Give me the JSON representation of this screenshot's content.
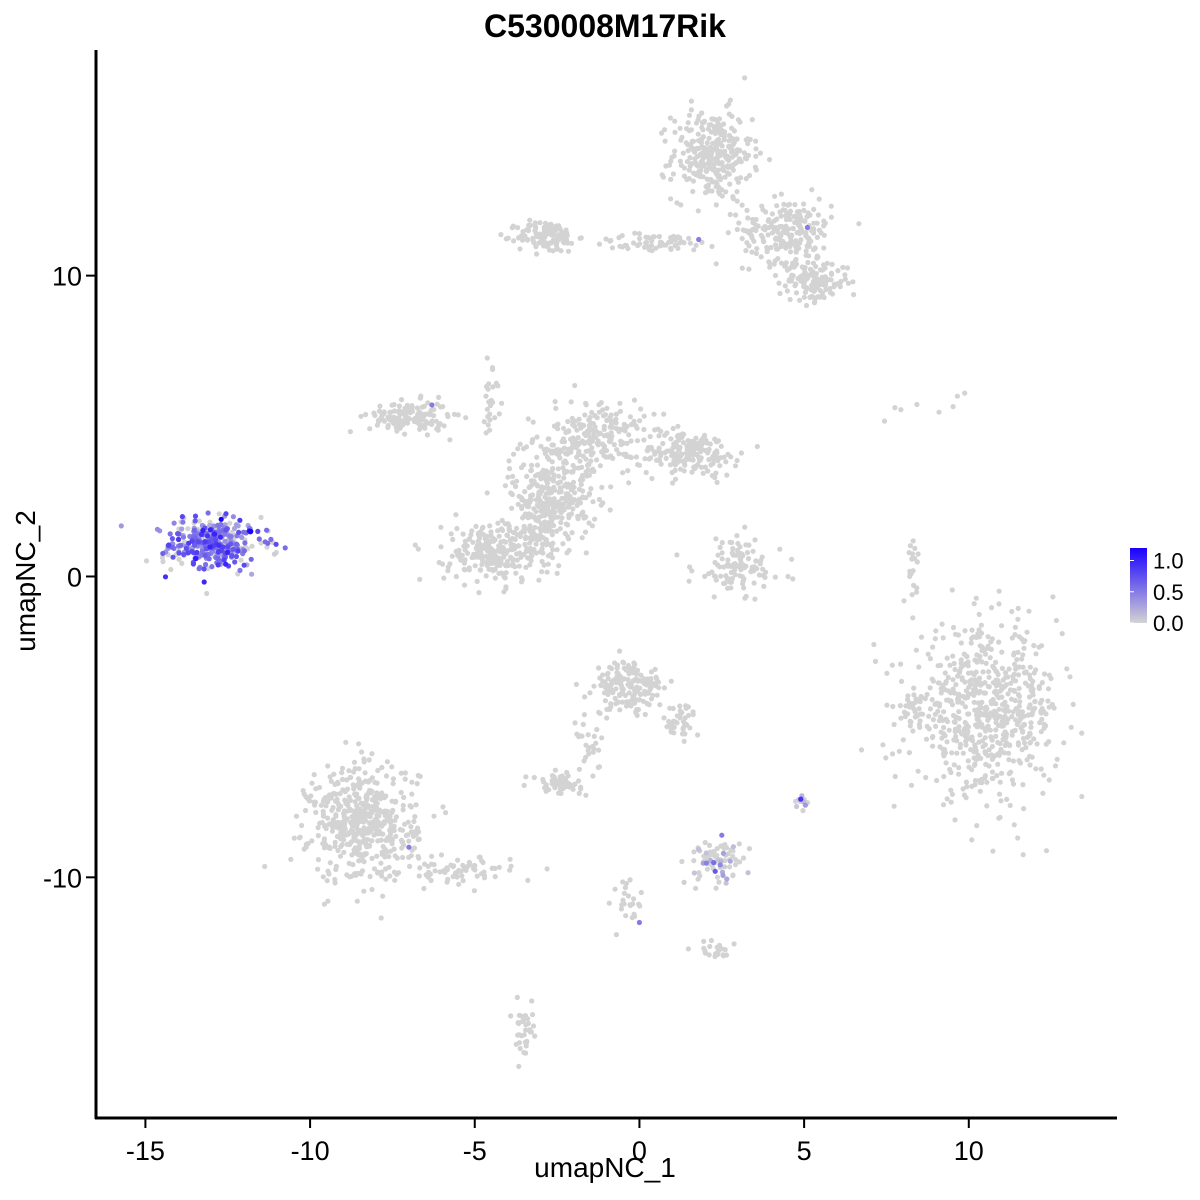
{
  "chart_data": {
    "type": "scatter",
    "title": "C530008M17Rik",
    "xlabel": "umapNC_1",
    "ylabel": "umapNC_2",
    "xlim": [
      -16.5,
      14.5
    ],
    "ylim": [
      -18.0,
      17.5
    ],
    "x_ticks": [
      -15,
      -10,
      -5,
      0,
      5,
      10
    ],
    "y_ticks": [
      -10,
      0,
      10
    ],
    "x_tick_labels": [
      "-15",
      "-10",
      "-5",
      "0",
      "5",
      "10"
    ],
    "y_tick_labels": [
      "-10",
      "0",
      "10"
    ],
    "grid": false,
    "legend": {
      "placement": "right",
      "labels": [
        "1.0",
        "0.5",
        "0.0"
      ],
      "values": [
        1.0,
        0.5,
        0.0
      ],
      "max": 1.2
    },
    "colors": {
      "low": "#d3d3d3",
      "high": "#1a00ff"
    },
    "clusters": [
      {
        "center": [
          -12.9,
          1.1
        ],
        "spread": [
          0.9,
          0.55
        ],
        "n": 380,
        "expr_mean": 0.55
      },
      {
        "center": [
          2.2,
          14.0
        ],
        "spread": [
          0.8,
          1.0
        ],
        "n": 300,
        "expr_mean": 0
      },
      {
        "center": [
          -2.8,
          11.3
        ],
        "spread": [
          0.6,
          0.35
        ],
        "n": 120,
        "expr_mean": 0
      },
      {
        "center": [
          0.5,
          11.1
        ],
        "spread": [
          1.4,
          0.2
        ],
        "n": 60,
        "expr_mean": 0
      },
      {
        "center": [
          4.5,
          11.5
        ],
        "spread": [
          0.9,
          0.7
        ],
        "n": 220,
        "expr_mean": 0
      },
      {
        "center": [
          5.3,
          9.8
        ],
        "spread": [
          0.7,
          0.45
        ],
        "n": 140,
        "expr_mean": 0
      },
      {
        "center": [
          -7.0,
          5.3
        ],
        "spread": [
          0.8,
          0.35
        ],
        "n": 140,
        "expr_mean": 0
      },
      {
        "center": [
          -2.6,
          3.0
        ],
        "spread": [
          0.9,
          1.2
        ],
        "n": 260,
        "expr_mean": 0
      },
      {
        "center": [
          -1.2,
          4.7
        ],
        "spread": [
          0.9,
          0.8
        ],
        "n": 200,
        "expr_mean": 0
      },
      {
        "center": [
          1.5,
          4.1
        ],
        "spread": [
          1.0,
          0.5
        ],
        "n": 180,
        "expr_mean": 0
      },
      {
        "center": [
          -4.4,
          0.8
        ],
        "spread": [
          1.0,
          0.7
        ],
        "n": 240,
        "expr_mean": 0
      },
      {
        "center": [
          -3.0,
          1.8
        ],
        "spread": [
          0.5,
          0.9
        ],
        "n": 120,
        "expr_mean": 0
      },
      {
        "center": [
          -4.5,
          6.0
        ],
        "spread": [
          0.2,
          0.8
        ],
        "n": 25,
        "expr_mean": 0
      },
      {
        "center": [
          3.0,
          0.3
        ],
        "spread": [
          0.9,
          0.7
        ],
        "n": 110,
        "expr_mean": 0
      },
      {
        "center": [
          10.5,
          -4.5
        ],
        "spread": [
          1.5,
          1.8
        ],
        "n": 650,
        "expr_mean": 0
      },
      {
        "center": [
          8.3,
          -4.4
        ],
        "spread": [
          0.2,
          0.4
        ],
        "n": 25,
        "expr_mean": 0
      },
      {
        "center": [
          8.3,
          0.3
        ],
        "spread": [
          0.15,
          0.6
        ],
        "n": 20,
        "expr_mean": 0
      },
      {
        "center": [
          -8.4,
          -8.2
        ],
        "spread": [
          1.1,
          1.3
        ],
        "n": 500,
        "expr_mean": 0
      },
      {
        "center": [
          -5.5,
          -9.8
        ],
        "spread": [
          1.1,
          0.3
        ],
        "n": 70,
        "expr_mean": 0
      },
      {
        "center": [
          -0.3,
          -3.7
        ],
        "spread": [
          0.7,
          0.6
        ],
        "n": 170,
        "expr_mean": 0
      },
      {
        "center": [
          1.2,
          -4.8
        ],
        "spread": [
          0.4,
          0.4
        ],
        "n": 40,
        "expr_mean": 0
      },
      {
        "center": [
          -1.5,
          -5.5
        ],
        "spread": [
          0.3,
          0.6
        ],
        "n": 25,
        "expr_mean": 0
      },
      {
        "center": [
          -2.5,
          -6.9
        ],
        "spread": [
          0.5,
          0.2
        ],
        "n": 60,
        "expr_mean": 0
      },
      {
        "center": [
          2.4,
          -9.4
        ],
        "spread": [
          0.5,
          0.5
        ],
        "n": 80,
        "expr_mean": 0.03
      },
      {
        "center": [
          4.9,
          -7.5
        ],
        "spread": [
          0.1,
          0.15
        ],
        "n": 12,
        "expr_mean": 0.15
      },
      {
        "center": [
          -0.3,
          -10.8
        ],
        "spread": [
          0.3,
          0.5
        ],
        "n": 25,
        "expr_mean": 0
      },
      {
        "center": [
          2.3,
          -12.4
        ],
        "spread": [
          0.4,
          0.2
        ],
        "n": 20,
        "expr_mean": 0
      },
      {
        "center": [
          -3.5,
          -15.1
        ],
        "spread": [
          0.2,
          0.6
        ],
        "n": 35,
        "expr_mean": 0
      },
      {
        "center": [
          8.5,
          5.7
        ],
        "spread": [
          1.2,
          0.5
        ],
        "n": 8,
        "expr_mean": 0
      }
    ],
    "highlight_points": [
      {
        "x": -12.7,
        "y": 1.9,
        "value": 1.2
      },
      {
        "x": -11.8,
        "y": 1.5,
        "value": 1.2
      },
      {
        "x": -12.5,
        "y": 0.8,
        "value": 1.0
      },
      {
        "x": -13.3,
        "y": 1.4,
        "value": 0.9
      },
      {
        "x": 5.1,
        "y": 11.6,
        "value": 0.5
      },
      {
        "x": 1.8,
        "y": 11.2,
        "value": 0.5
      },
      {
        "x": -6.3,
        "y": 5.7,
        "value": 0.5
      },
      {
        "x": 4.9,
        "y": -7.4,
        "value": 0.9
      },
      {
        "x": 2.5,
        "y": -8.6,
        "value": 0.5
      },
      {
        "x": 2.3,
        "y": -9.8,
        "value": 0.7
      },
      {
        "x": -7.0,
        "y": -9.0,
        "value": 0.5
      },
      {
        "x": 0.0,
        "y": -11.5,
        "value": 0.5
      }
    ]
  }
}
